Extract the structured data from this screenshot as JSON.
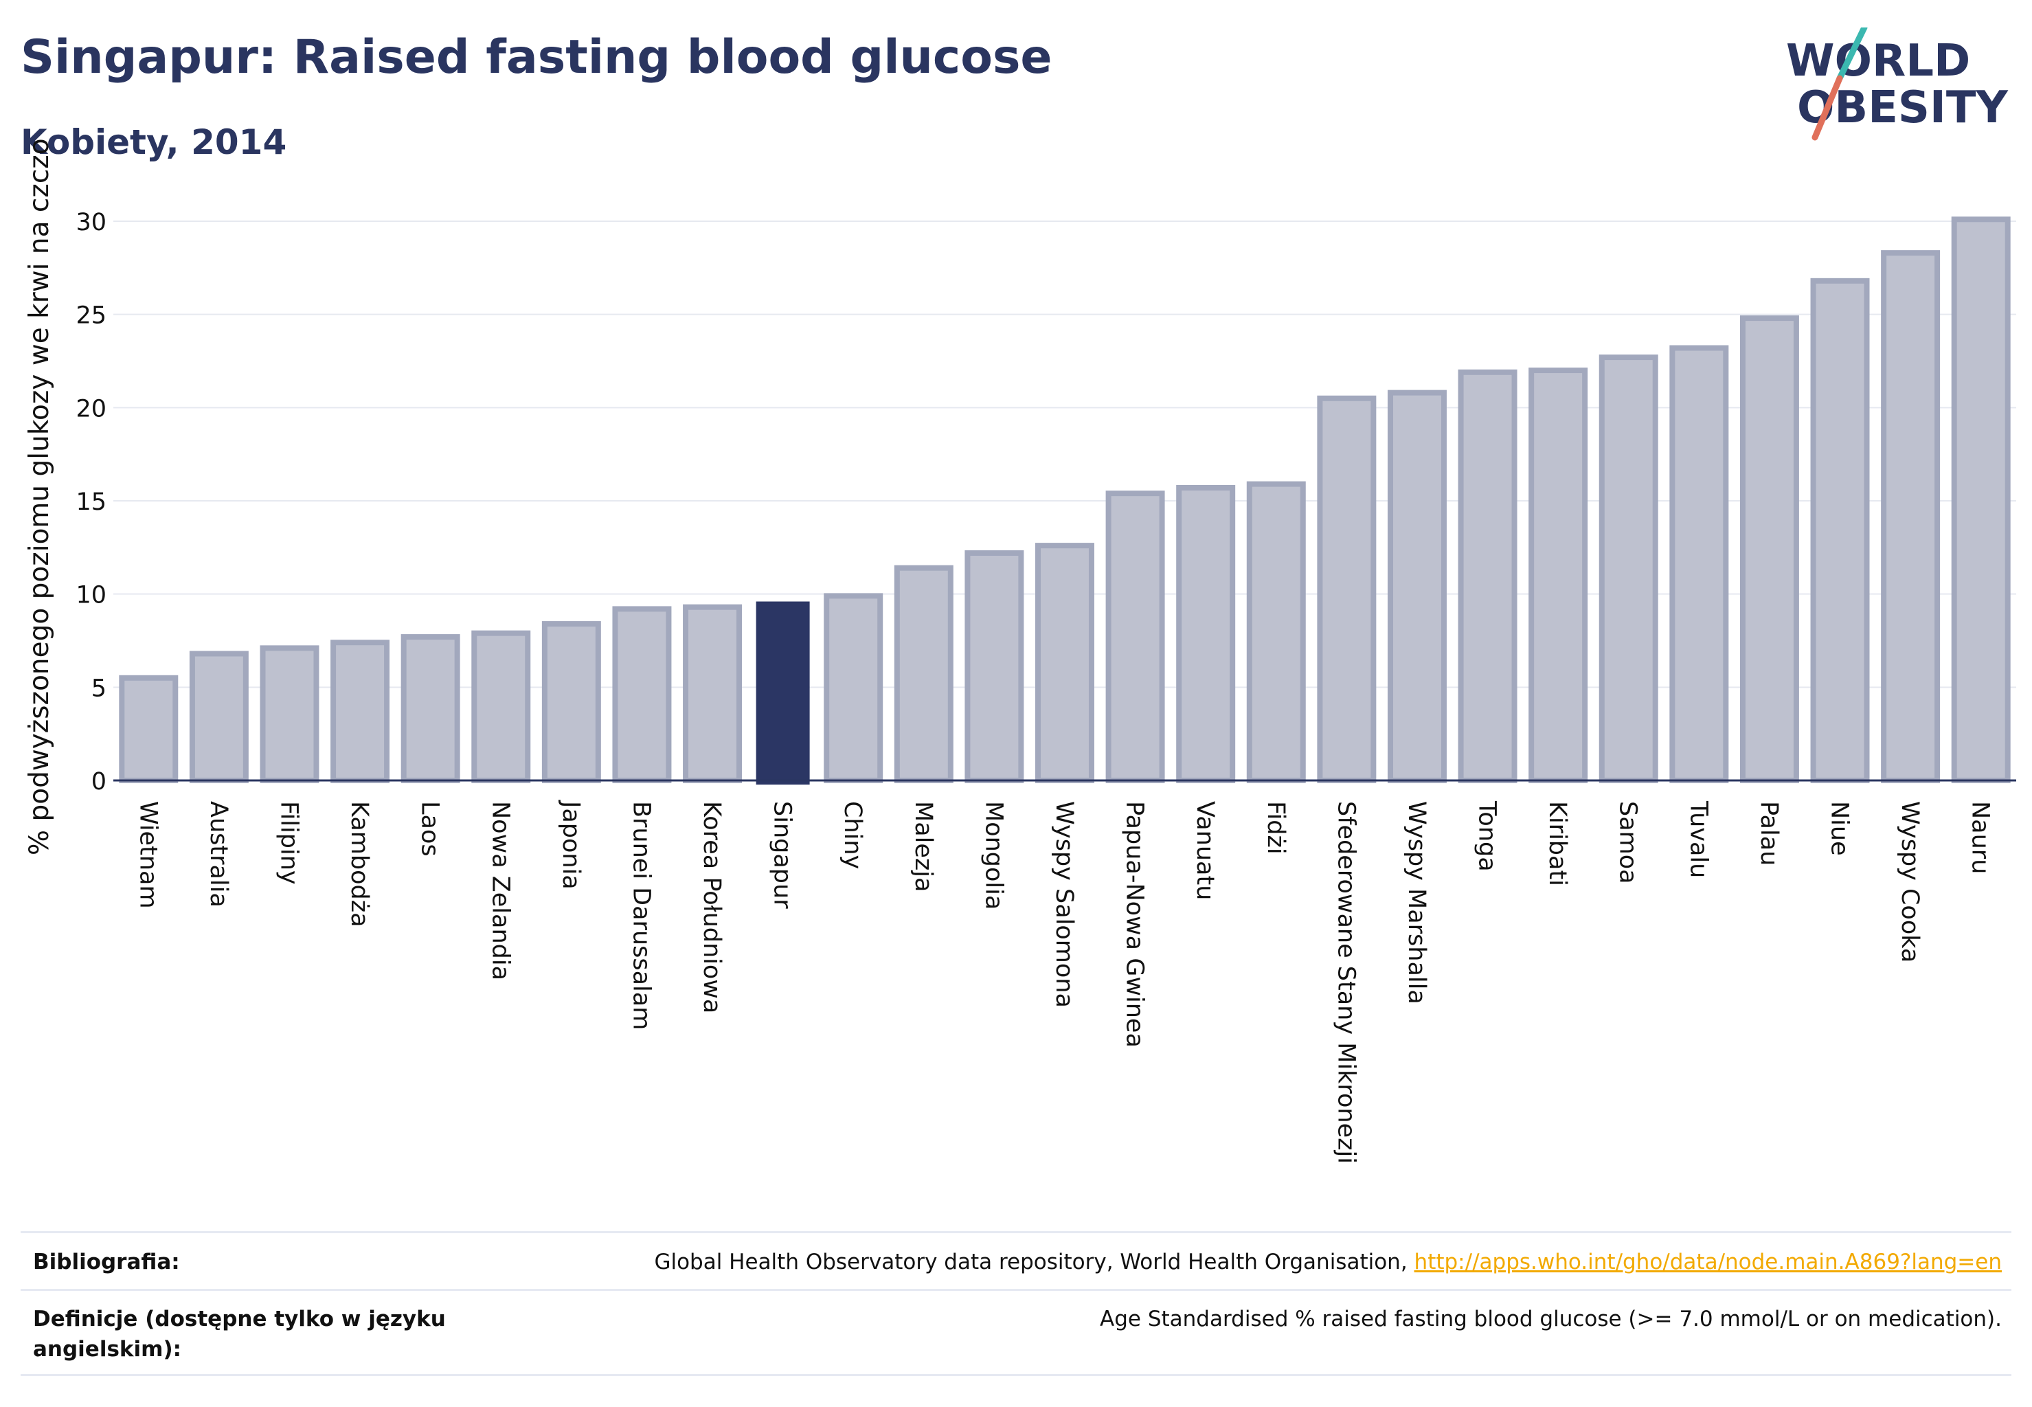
{
  "header": {
    "title": "Singapur: Raised fasting blood glucose",
    "subtitle": "Kobiety, 2014",
    "logo_text_1": "WORLD",
    "logo_text_2": "OBESITY"
  },
  "chart_data": {
    "type": "bar",
    "title": "Singapur: Raised fasting blood glucose",
    "subtitle": "Kobiety, 2014",
    "xlabel": "",
    "ylabel": "% podwyższonego poziomu glukozy we krwi na czczo",
    "ylim": [
      0,
      31
    ],
    "yticks": [
      0,
      5,
      10,
      15,
      20,
      25,
      30
    ],
    "grid": true,
    "highlight": "Singapur",
    "colors": {
      "bar": "#bec1cf",
      "bar_border": "#a2a8bd",
      "highlight": "#2b3664",
      "text": "#2a3560",
      "grid": "#e6e9f0"
    },
    "categories": [
      "Wietnam",
      "Australia",
      "Filipiny",
      "Kambodża",
      "Laos",
      "Nowa Zelandia",
      "Japonia",
      "Brunei Darussalam",
      "Korea Południowa",
      "Singapur",
      "Chiny",
      "Malezja",
      "Mongolia",
      "Wyspy Salomona",
      "Papua-Nowa Gwinea",
      "Vanuatu",
      "Fidżi",
      "Sfederowane Stany Mikronezji",
      "Wyspy Marshalla",
      "Tonga",
      "Kiribati",
      "Samoa",
      "Tuvalu",
      "Palau",
      "Niue",
      "Wyspy Cooka",
      "Nauru"
    ],
    "values": [
      5.5,
      6.8,
      7.1,
      7.4,
      7.7,
      7.9,
      8.4,
      9.2,
      9.3,
      9.6,
      9.9,
      11.4,
      12.2,
      12.6,
      15.4,
      15.7,
      15.9,
      20.5,
      20.8,
      21.9,
      22.0,
      22.7,
      23.2,
      24.8,
      26.8,
      28.3,
      30.1
    ]
  },
  "footer": {
    "bibliography_label": "Bibliografia:",
    "bibliography_text": "Global Health Observatory data repository, World Health Organisation, ",
    "bibliography_link": "http://apps.who.int/gho/data/node.main.A869?lang=en",
    "definitions_label": "Definicje (dostępne tylko w języku angielskim):",
    "definitions_text": "Age Standardised % raised fasting blood glucose (>= 7.0 mmol/L or on medication)."
  }
}
